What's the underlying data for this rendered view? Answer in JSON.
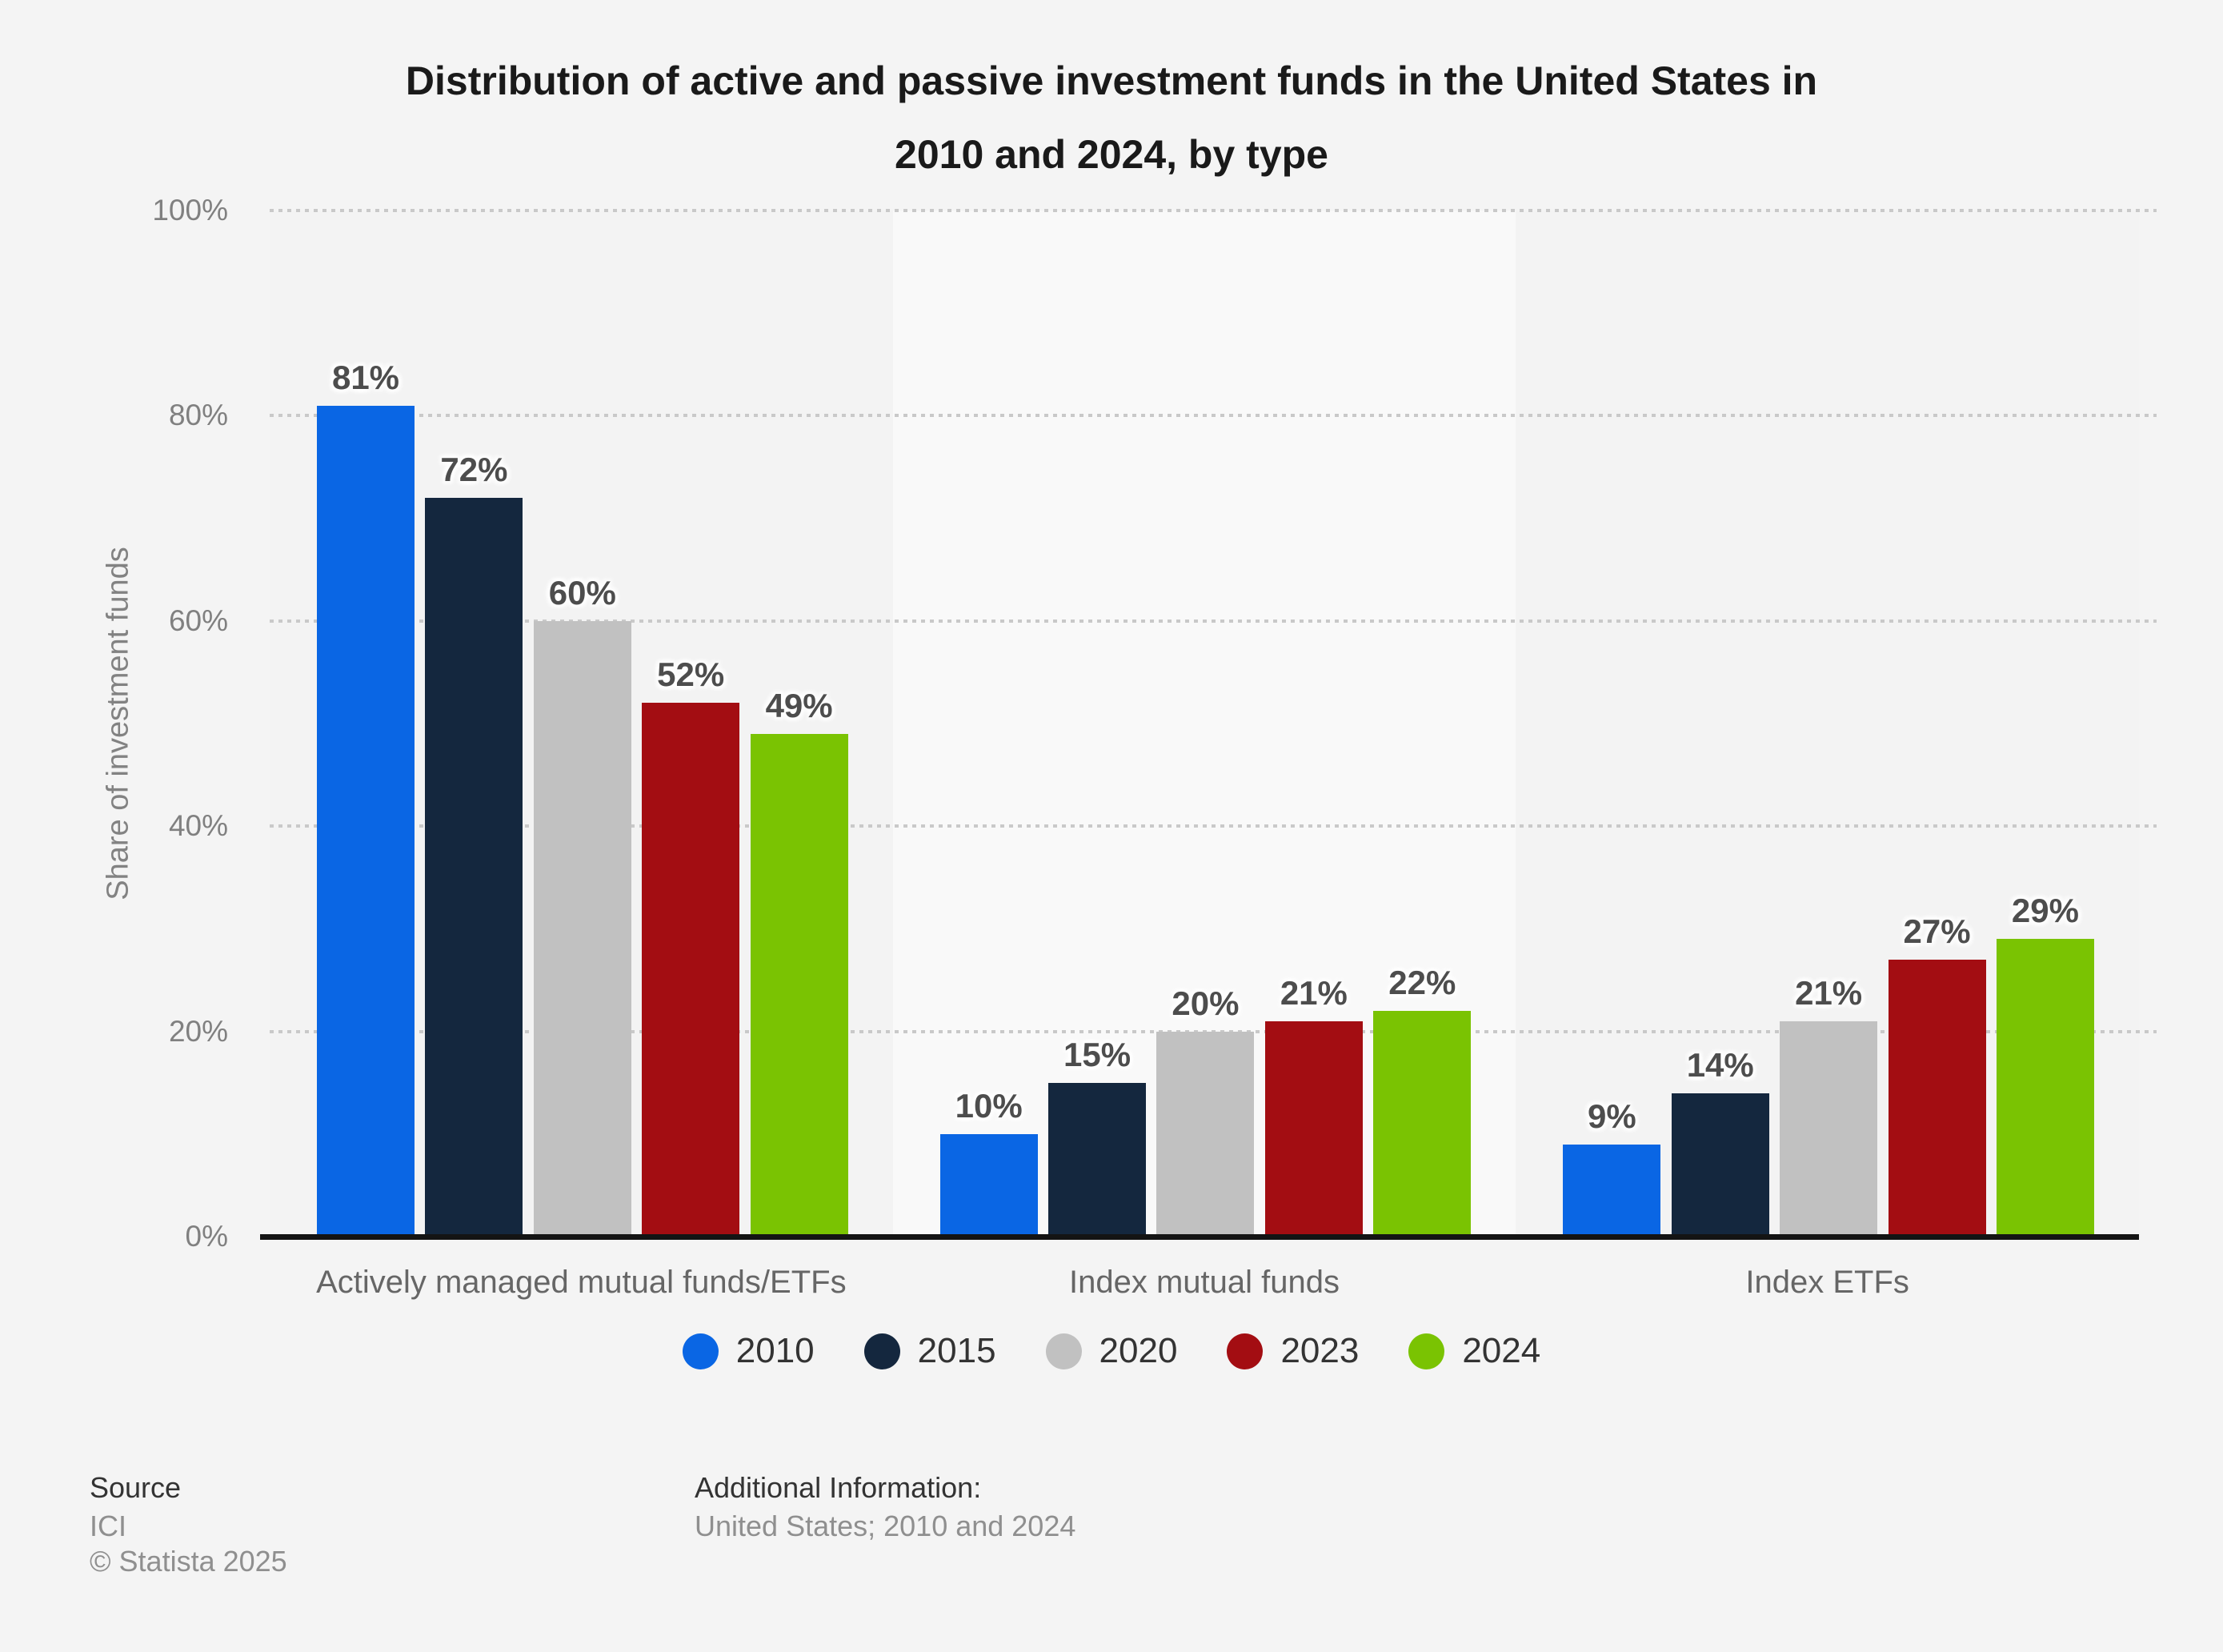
{
  "chart_data": {
    "type": "bar",
    "title": "Distribution of active and passive investment funds in the United States in 2010 and 2024, by type",
    "title_lines": [
      "Distribution of active and passive investment funds in the United States in",
      "2010 and 2024, by type"
    ],
    "ylabel": "Share of investment funds",
    "xlabel": "",
    "ylim": [
      0,
      100
    ],
    "yticks": [
      "0%",
      "20%",
      "40%",
      "60%",
      "80%",
      "100%"
    ],
    "ytick_values": [
      0,
      20,
      40,
      60,
      80,
      100
    ],
    "grid": true,
    "grid_color": "#c9c9c9",
    "axis_color": "#141414",
    "plot_band_default": "#f3f3f3",
    "plot_band_highlight": "#f9f9f9",
    "legend_position": "bottom",
    "value_suffix": "%",
    "categories": [
      "Actively managed mutual funds/ETFs",
      "Index mutual funds",
      "Index ETFs"
    ],
    "series": [
      {
        "name": "2010",
        "color": "#0a66e4",
        "values": [
          81,
          10,
          9
        ]
      },
      {
        "name": "2015",
        "color": "#14273e",
        "values": [
          72,
          15,
          14
        ]
      },
      {
        "name": "2020",
        "color": "#c1c1c1",
        "values": [
          60,
          20,
          21
        ]
      },
      {
        "name": "2023",
        "color": "#a30d12",
        "values": [
          52,
          21,
          27
        ]
      },
      {
        "name": "2024",
        "color": "#7ac302",
        "values": [
          49,
          22,
          29
        ]
      }
    ]
  },
  "footer": {
    "source_label": "Source",
    "source_value": "ICI",
    "copyright": "© Statista 2025",
    "additional_label": "Additional Information:",
    "additional_value": "United States; 2010 and 2024"
  }
}
